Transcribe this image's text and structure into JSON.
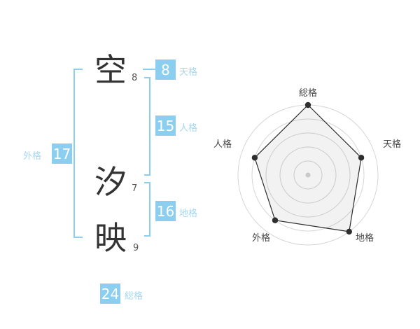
{
  "name_analysis": {
    "chars": [
      {
        "char": "空",
        "strokes": "8"
      },
      {
        "char": "汐",
        "strokes": "7"
      },
      {
        "char": "映",
        "strokes": "9"
      }
    ],
    "values": {
      "tenkaku": {
        "label": "天格",
        "value": "8"
      },
      "jinkaku": {
        "label": "人格",
        "value": "15"
      },
      "gaikaku": {
        "label": "外格",
        "value": "17"
      },
      "chikaku": {
        "label": "地格",
        "value": "16"
      },
      "soukaku": {
        "label": "総格",
        "value": "24"
      }
    }
  },
  "colors": {
    "accent_blue": "#8cceef",
    "label_blue": "#a5d7f2",
    "kanji_ink": "#333333",
    "ring_gray": "#d6d6d6",
    "polygon_line": "#2e2e2e",
    "polygon_fill": "#000000",
    "polygon_fill_opacity": "0.05",
    "center_dot": "#c9c9c9",
    "axis_label": "#444444"
  },
  "chart_data": {
    "type": "radar",
    "categories": [
      "総格",
      "天格",
      "地格",
      "外格",
      "人格"
    ],
    "values": [
      5,
      4,
      5,
      4,
      4
    ],
    "scale_max": 5,
    "rings": 5,
    "axis_order": "clockwise from top",
    "raw_values": [
      24,
      8,
      16,
      17,
      15
    ],
    "legend_position": "none",
    "grid": "concentric-circles"
  }
}
